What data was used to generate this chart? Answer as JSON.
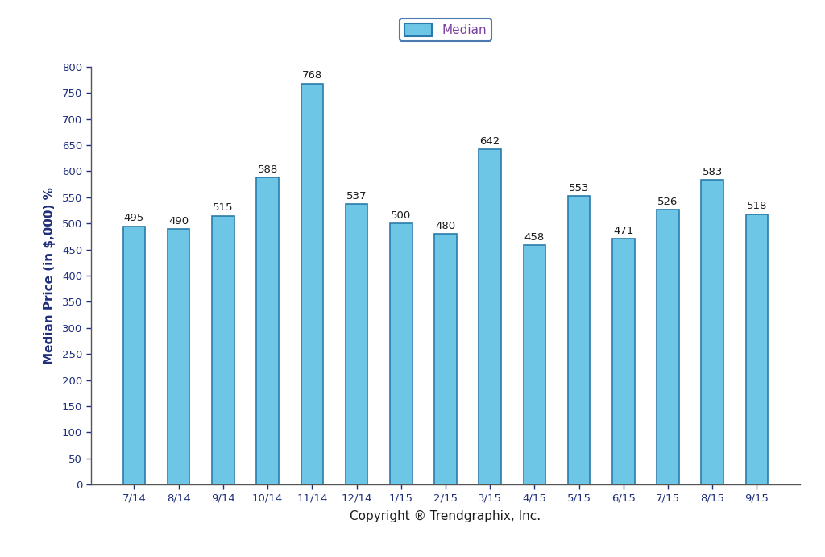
{
  "categories": [
    "7/14",
    "8/14",
    "9/14",
    "10/14",
    "11/14",
    "12/14",
    "1/15",
    "2/15",
    "3/15",
    "4/15",
    "5/15",
    "6/15",
    "7/15",
    "8/15",
    "9/15"
  ],
  "values": [
    495,
    490,
    515,
    588,
    768,
    537,
    500,
    480,
    642,
    458,
    553,
    471,
    526,
    583,
    518
  ],
  "bar_color": "#6EC6E6",
  "bar_edge_color": "#2A7BAB",
  "ylim": [
    0,
    800
  ],
  "yticks": [
    0,
    50,
    100,
    150,
    200,
    250,
    300,
    350,
    400,
    450,
    500,
    550,
    600,
    650,
    700,
    750,
    800
  ],
  "ylabel": "Median Price (in $,000) %",
  "xlabel": "Copyright ® Trendgraphix, Inc.",
  "legend_label": "Median",
  "background_color": "#FFFFFF",
  "label_fontsize": 9.5,
  "axis_label_color": "#1F2F7A",
  "axis_label_fontsize": 11,
  "tick_fontsize": 9.5,
  "tick_color": "#1F2F7A",
  "legend_fontsize": 11,
  "bar_width": 0.5,
  "value_label_color": "#1A1A1A",
  "spine_color": "#555555"
}
